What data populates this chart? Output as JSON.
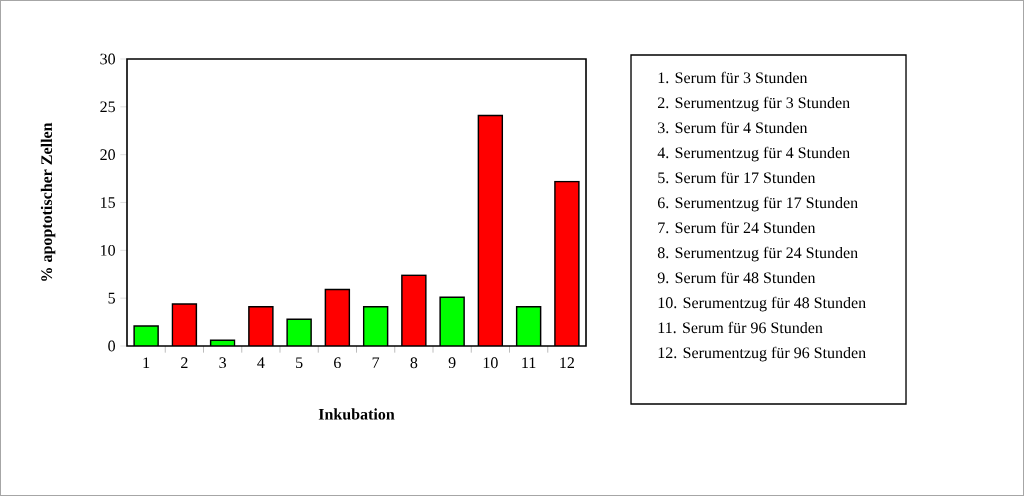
{
  "chart_data": {
    "type": "bar",
    "xlabel": "Inkubation",
    "ylabel": "% apoptotischer Zellen",
    "categories": [
      "1",
      "2",
      "3",
      "4",
      "5",
      "6",
      "7",
      "8",
      "9",
      "10",
      "11",
      "12"
    ],
    "values": [
      2.1,
      4.4,
      0.6,
      4.1,
      2.8,
      5.9,
      4.1,
      7.4,
      5.1,
      24.1,
      4.1,
      17.2
    ],
    "colors": [
      "#00ff00",
      "#ff0000",
      "#00ff00",
      "#ff0000",
      "#00ff00",
      "#ff0000",
      "#00ff00",
      "#ff0000",
      "#00ff00",
      "#ff0000",
      "#00ff00",
      "#ff0000"
    ],
    "ylim": [
      0,
      30
    ],
    "yticks": [
      0,
      5,
      10,
      15,
      20,
      25,
      30
    ],
    "grid": false,
    "annotations": [
      "1. Serum für 3 Stunden",
      "2. Serumentzug für 3 Stunden",
      "3. Serum für 4 Stunden",
      "4. Serumentzug für 4 Stunden",
      "5. Serum für 17 Stunden",
      "6. Serumentzug für 17 Stunden",
      "7. Serum für 24 Stunden",
      "8. Serumentzug für 24 Stunden",
      "9. Serum für 48 Stunden",
      "10. Serumentzug für 48 Stunden",
      "11. Serum für 96 Stunden",
      "12. Serumentzug für 96 Stunden"
    ]
  }
}
